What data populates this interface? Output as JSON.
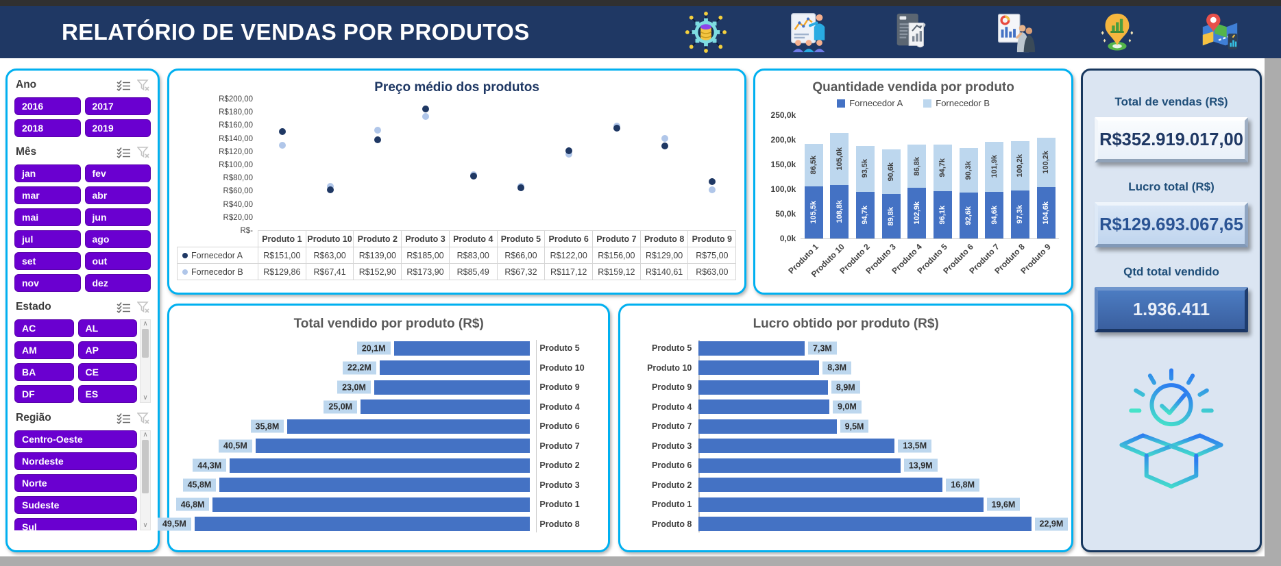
{
  "header": {
    "title": "RELATÓRIO DE VENDAS POR PRODUTOS",
    "icons": [
      "data-circuit-icon",
      "analytics-presentation-icon",
      "report-document-icon",
      "whiteboard-meeting-icon",
      "geo-analytics-pin-icon",
      "map-location-icon"
    ]
  },
  "slicers": [
    {
      "id": "ano",
      "label": "Ano",
      "items": [
        "2016",
        "2017",
        "2018",
        "2019"
      ],
      "columns": 2,
      "scrollbar": false
    },
    {
      "id": "mes",
      "label": "Mês",
      "items": [
        "jan",
        "fev",
        "mar",
        "abr",
        "mai",
        "jun",
        "jul",
        "ago",
        "set",
        "out",
        "nov",
        "dez"
      ],
      "columns": 2,
      "scrollbar": false
    },
    {
      "id": "estado",
      "label": "Estado",
      "items": [
        "AC",
        "AL",
        "AM",
        "AP",
        "BA",
        "CE",
        "DF",
        "ES"
      ],
      "columns": 2,
      "scrollbar": true
    },
    {
      "id": "regiao",
      "label": "Região",
      "items": [
        "Centro-Oeste",
        "Nordeste",
        "Norte",
        "Sudeste",
        "Sul"
      ],
      "columns": 1,
      "scrollbar": true
    }
  ],
  "kpis": [
    {
      "label": "Total de vendas (R$)",
      "value": "R$352.919.017,00",
      "style": "light"
    },
    {
      "label": "Lucro total (R$)",
      "value": "R$129.693.067,65",
      "style": "blue"
    },
    {
      "label": "Qtd total vendido",
      "value": "1.936.411",
      "style": "dark"
    }
  ],
  "kpi_icon_name": "open-box-check-icon",
  "colors": {
    "header_navy": "#1F3864",
    "card_border_cyan": "#00B0F0",
    "slicer_purple": "#6A00D0",
    "bar_blue": "#4472C4",
    "light_blue": "#BDD7EE",
    "scatter_a": "#1F3864",
    "scatter_b": "#B0C6E9",
    "kpi_panel_bg": "#DBE5F2"
  },
  "chart_data": [
    {
      "id": "preco_medio",
      "type": "scatter",
      "title": "Preço médio dos produtos",
      "categories": [
        "Produto 1",
        "Produto 10",
        "Produto 2",
        "Produto 3",
        "Produto 4",
        "Produto 5",
        "Produto 6",
        "Produto 7",
        "Produto 8",
        "Produto 9"
      ],
      "series": [
        {
          "name": "Fornecedor A",
          "values": [
            151.0,
            63.0,
            139.0,
            185.0,
            83.0,
            66.0,
            122.0,
            156.0,
            129.0,
            75.0
          ],
          "labels": [
            "R$151,00",
            "R$63,00",
            "R$139,00",
            "R$185,00",
            "R$83,00",
            "R$66,00",
            "R$122,00",
            "R$156,00",
            "R$129,00",
            "R$75,00"
          ]
        },
        {
          "name": "Fornecedor B",
          "values": [
            129.86,
            67.41,
            152.9,
            173.9,
            85.49,
            67.32,
            117.12,
            159.12,
            140.61,
            63.0
          ],
          "labels": [
            "R$129,86",
            "R$67,41",
            "R$152,90",
            "R$173,90",
            "R$85,49",
            "R$67,32",
            "R$117,12",
            "R$159,12",
            "R$140,61",
            "R$63,00"
          ]
        }
      ],
      "y_tick_values": [
        200,
        180,
        160,
        140,
        120,
        100,
        80,
        60,
        40,
        20,
        0
      ],
      "y_tick_labels": [
        "R$200,00",
        "R$180,00",
        "R$160,00",
        "R$140,00",
        "R$120,00",
        "R$100,00",
        "R$80,00",
        "R$60,00",
        "R$40,00",
        "R$20,00",
        "R$-"
      ],
      "ylim": [
        0,
        200
      ],
      "legend_position": "table-left",
      "grid": false
    },
    {
      "id": "quantidade",
      "type": "bar",
      "subtype": "stacked-column",
      "title": "Quantidade vendida por produto",
      "categories": [
        "Produto 1",
        "Produto 10",
        "Produto 2",
        "Produto 3",
        "Produto 4",
        "Produto 5",
        "Produto 6",
        "Produto 7",
        "Produto 8",
        "Produto 9"
      ],
      "series": [
        {
          "name": "Fornecedor A",
          "values": [
            105.5,
            108.8,
            94.7,
            89.8,
            102.9,
            96.1,
            92.6,
            94.6,
            97.3,
            104.6
          ],
          "labels": [
            "105,5k",
            "108,8k",
            "94,7k",
            "89,8k",
            "102,9k",
            "96,1k",
            "92,6k",
            "94,6k",
            "97,3k",
            "104,6k"
          ]
        },
        {
          "name": "Fornecedor B",
          "values": [
            86.5,
            105.0,
            93.5,
            90.6,
            86.8,
            94.7,
            90.3,
            101.9,
            100.2,
            100.2
          ],
          "labels": [
            "86,5k",
            "105,0k",
            "93,5k",
            "90,6k",
            "86,8k",
            "94,7k",
            "90,3k",
            "101,9k",
            "100,2k",
            "100,2k"
          ]
        }
      ],
      "y_tick_values": [
        250,
        200,
        150,
        100,
        50,
        0
      ],
      "y_tick_labels": [
        "250,0k",
        "200,0k",
        "150,0k",
        "100,0k",
        "50,0k",
        "0,0k"
      ],
      "ylim": [
        0,
        250
      ],
      "unit": "k",
      "legend_position": "top",
      "grid": false
    },
    {
      "id": "total_vendido",
      "type": "bar",
      "subtype": "horizontal-right-aligned",
      "title": "Total vendido por produto (R$)",
      "categories": [
        "Produto 5",
        "Produto 10",
        "Produto 9",
        "Produto 4",
        "Produto 6",
        "Produto 7",
        "Produto 2",
        "Produto 3",
        "Produto 1",
        "Produto 8"
      ],
      "values": [
        20.1,
        22.2,
        23.0,
        25.0,
        35.8,
        40.5,
        44.3,
        45.8,
        46.8,
        49.5
      ],
      "labels": [
        "20,1M",
        "22,2M",
        "23,0M",
        "25,0M",
        "35,8M",
        "40,5M",
        "44,3M",
        "45,8M",
        "46,8M",
        "49,5M"
      ],
      "xlim": [
        0,
        52
      ],
      "unit": "M",
      "grid": false
    },
    {
      "id": "lucro",
      "type": "bar",
      "subtype": "horizontal",
      "title": "Lucro obtido por produto (R$)",
      "categories": [
        "Produto 5",
        "Produto 10",
        "Produto 9",
        "Produto 4",
        "Produto 7",
        "Produto 3",
        "Produto 6",
        "Produto 2",
        "Produto 1",
        "Produto 8"
      ],
      "values": [
        7.3,
        8.3,
        8.9,
        9.0,
        9.5,
        13.5,
        13.9,
        16.8,
        19.6,
        22.9
      ],
      "labels": [
        "7,3M",
        "8,3M",
        "8,9M",
        "9,0M",
        "9,5M",
        "13,5M",
        "13,9M",
        "16,8M",
        "19,6M",
        "22,9M"
      ],
      "xlim": [
        0,
        25
      ],
      "unit": "M",
      "grid": false
    }
  ]
}
